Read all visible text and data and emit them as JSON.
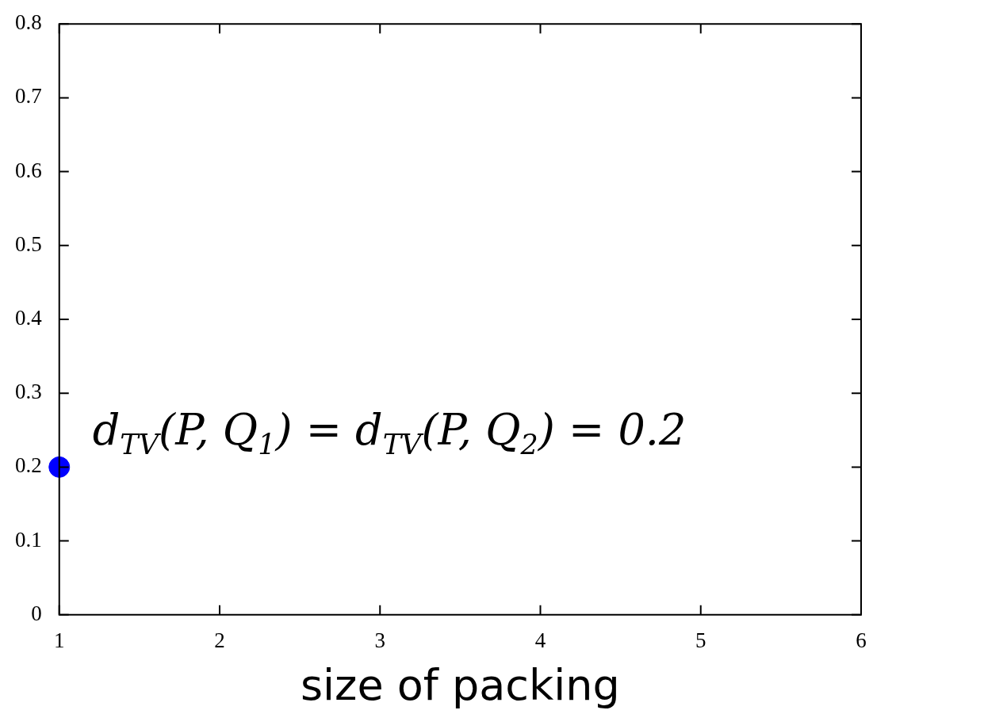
{
  "chart_data": {
    "type": "scatter",
    "xlabel": "size of packing",
    "x": [
      1
    ],
    "series": [
      {
        "color": "#0000ff",
        "values": [
          0.2
        ]
      }
    ],
    "xlim": [
      1,
      6
    ],
    "xticks": [
      1,
      2,
      3,
      4,
      5,
      6
    ],
    "ylim": [
      0,
      0.8
    ],
    "yticks": [
      0,
      0.1,
      0.2,
      0.3,
      0.4,
      0.5,
      0.6,
      0.7,
      0.8
    ],
    "marker": "circle",
    "legend": false,
    "annotations": [
      "d$_{TV}$(P, Q$_{1}$) = d$_{TV}$(P, Q$_{2}$) = 0.2"
    ]
  }
}
